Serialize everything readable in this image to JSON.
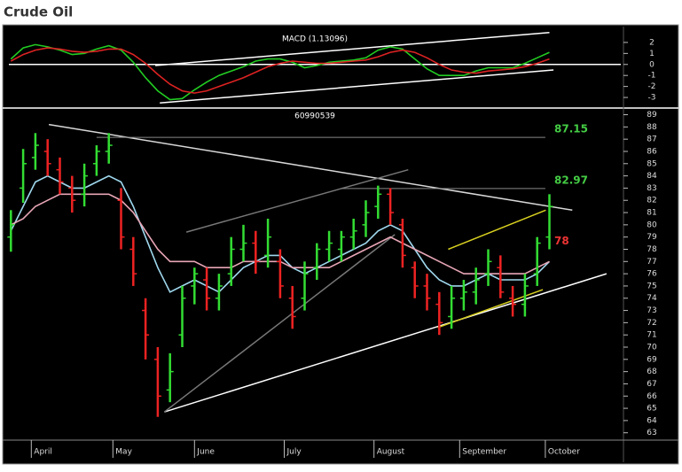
{
  "header": {
    "title": "Crude Oil"
  },
  "chart_data": [
    {
      "type": "line",
      "title": "MACD (1.13096)",
      "x": [
        0,
        3,
        6,
        9,
        12,
        15,
        18,
        21,
        24,
        27,
        30,
        33,
        36,
        39,
        42,
        45,
        48,
        51,
        54,
        57,
        60,
        63,
        66,
        69,
        72,
        75,
        78,
        81,
        84,
        87,
        90,
        93,
        96,
        99,
        102,
        105,
        108,
        111,
        114,
        117,
        120,
        123,
        126,
        129,
        132
      ],
      "series": [
        {
          "color": "#22cc22",
          "values": [
            0.5,
            1.5,
            1.8,
            1.6,
            1.3,
            0.9,
            1.0,
            1.4,
            1.7,
            1.3,
            0.2,
            -1.2,
            -2.4,
            -3.2,
            -3.1,
            -2.3,
            -1.6,
            -1.0,
            -0.6,
            -0.2,
            0.3,
            0.5,
            0.5,
            0.2,
            -0.3,
            -0.1,
            0.2,
            0.3,
            0.4,
            0.6,
            1.3,
            1.6,
            1.4,
            0.5,
            -0.4,
            -1.0,
            -1.0,
            -1.0,
            -0.6,
            -0.3,
            -0.3,
            -0.3,
            0.1,
            0.6,
            1.1
          ]
        },
        {
          "color": "#dd2222",
          "values": [
            0.3,
            0.9,
            1.3,
            1.5,
            1.4,
            1.2,
            1.1,
            1.2,
            1.4,
            1.4,
            0.9,
            0.1,
            -0.9,
            -1.8,
            -2.4,
            -2.6,
            -2.4,
            -2.0,
            -1.6,
            -1.2,
            -0.7,
            -0.2,
            0.1,
            0.3,
            0.2,
            0.1,
            0.1,
            0.2,
            0.3,
            0.4,
            0.7,
            1.1,
            1.3,
            1.1,
            0.6,
            0.0,
            -0.5,
            -0.7,
            -0.8,
            -0.6,
            -0.5,
            -0.4,
            -0.2,
            0.1,
            0.5
          ]
        }
      ],
      "xlim": [
        -0.5,
        149.5
      ],
      "ylim": [
        -3.8,
        3.2
      ],
      "yticks": [
        2,
        1,
        0,
        -1,
        -2,
        -3
      ],
      "zero_line": true,
      "trendlines": [
        {
          "x": [
            35.4,
            132
          ],
          "y": [
            -0.1,
            2.9
          ],
          "color": "#ffffff"
        },
        {
          "x": [
            36.5,
            133
          ],
          "y": [
            -3.5,
            -0.5
          ],
          "color": "#ffffff"
        }
      ]
    },
    {
      "type": "ohlc",
      "title": "60990539",
      "x": [
        0,
        3,
        6,
        9,
        12,
        15,
        18,
        21,
        24,
        27,
        30,
        33,
        36,
        39,
        42,
        45,
        48,
        51,
        54,
        57,
        60,
        63,
        66,
        69,
        72,
        75,
        78,
        81,
        84,
        87,
        90,
        93,
        96,
        99,
        102,
        105,
        108,
        111,
        114,
        117,
        120,
        123,
        126,
        129,
        132
      ],
      "open": [
        79,
        83,
        85.5,
        86,
        84.5,
        83,
        82.5,
        85,
        86,
        82,
        78,
        73,
        69,
        66.5,
        71,
        75,
        75.5,
        74,
        76,
        78,
        78.5,
        77.5,
        77,
        74,
        74,
        76.5,
        78,
        78,
        79,
        80,
        81.5,
        82.5,
        80,
        76.5,
        75,
        73.5,
        72.5,
        74,
        74.5,
        76,
        76.5,
        74,
        73.5,
        76,
        79
      ],
      "high": [
        81.2,
        86.2,
        87.5,
        87,
        85.5,
        84,
        85,
        86.5,
        87.5,
        83,
        79,
        74,
        70,
        69.5,
        75,
        76.5,
        76.5,
        76,
        79,
        80,
        79.5,
        80.5,
        78,
        75,
        77,
        78.5,
        79.5,
        79.5,
        80.5,
        82,
        83.2,
        83,
        80.5,
        77,
        76,
        74.5,
        75,
        75.5,
        76.5,
        78,
        77.5,
        75,
        76,
        79,
        82.5
      ],
      "low": [
        77.8,
        81.8,
        84.5,
        84,
        82.5,
        81,
        81.5,
        84,
        85,
        78,
        75,
        69,
        64.3,
        65.5,
        70,
        73.5,
        73,
        73,
        75,
        77,
        76,
        76.5,
        74,
        71.5,
        73,
        75.5,
        77,
        77,
        78,
        79,
        80.5,
        80,
        76.5,
        74,
        73,
        71,
        71.5,
        73,
        73.5,
        75,
        74,
        72.5,
        72.5,
        75,
        78
      ],
      "close": [
        80,
        85,
        86.5,
        85,
        83.5,
        82,
        84,
        86,
        86.5,
        79,
        76,
        71,
        66,
        68,
        74,
        76,
        74,
        75,
        78,
        78.5,
        77,
        79,
        75,
        72.5,
        76,
        78,
        78.5,
        79,
        79.5,
        81,
        82.5,
        81,
        77.5,
        75,
        74,
        72,
        74,
        74.5,
        75.5,
        77,
        74.5,
        73.5,
        75,
        78.5,
        81.5
      ],
      "up_color": "#33dd33",
      "down_color": "#ee2222",
      "series": [
        {
          "color": "#9fd8ee",
          "values": [
            79.5,
            81.5,
            83.5,
            84,
            83.5,
            83,
            83,
            83.5,
            84,
            83.5,
            81.5,
            79,
            76.5,
            74.5,
            75,
            75.5,
            75,
            74.5,
            75.5,
            76.5,
            77,
            77.5,
            77.5,
            76.5,
            76,
            76.5,
            77,
            77.5,
            78,
            78.5,
            79.5,
            80,
            79.5,
            78,
            76.5,
            75.5,
            75,
            75,
            75.5,
            76,
            75.5,
            75.5,
            75.5,
            76,
            77
          ]
        },
        {
          "color": "#e8a6b6",
          "values": [
            80,
            80.5,
            81.5,
            82,
            82.5,
            82.5,
            82.5,
            82.5,
            82.5,
            82,
            81,
            79.5,
            78,
            77,
            77,
            77,
            76.5,
            76.5,
            76.5,
            77,
            77,
            77,
            77,
            76.5,
            76.5,
            76.5,
            76.5,
            77,
            77.5,
            78,
            78.5,
            79,
            78.5,
            78,
            77.5,
            77,
            76.5,
            76,
            76,
            76,
            76,
            76,
            76,
            76.5,
            77
          ]
        }
      ],
      "xlim": [
        -0.5,
        149.5
      ],
      "ylim": [
        62.4,
        89.4
      ],
      "yticks": [
        89,
        88,
        87,
        86,
        85,
        84,
        83,
        82,
        81,
        80,
        79,
        78,
        77,
        76,
        75,
        74,
        73,
        72,
        71,
        70,
        69,
        68,
        67,
        66,
        65,
        64,
        63
      ],
      "xticks": [
        {
          "value": 5,
          "label": "April"
        },
        {
          "value": 25,
          "label": "May"
        },
        {
          "value": 45,
          "label": "June"
        },
        {
          "value": 67,
          "label": "July"
        },
        {
          "value": 89,
          "label": "August"
        },
        {
          "value": 110,
          "label": "September"
        },
        {
          "value": 131,
          "label": "October"
        }
      ],
      "levels": [
        {
          "text": "87.15",
          "value": 87.15,
          "x": [
            21,
            131
          ],
          "color": "#44cc44"
        },
        {
          "text": "82.97",
          "value": 82.97,
          "x": [
            81,
            131
          ],
          "color": "#44cc44"
        },
        {
          "text": "78",
          "value": 78,
          "x": null,
          "color": "#ee3333"
        }
      ],
      "trendlines": [
        {
          "x": [
            9.3,
            137.6
          ],
          "y": [
            88.2,
            81.2
          ],
          "color": "#d8d8d8"
        },
        {
          "x": [
            37.6,
            146
          ],
          "y": [
            64.7,
            76.0
          ],
          "color": "#ffffff"
        },
        {
          "x": [
            43,
            97.4
          ],
          "y": [
            79.4,
            84.5
          ],
          "color": "#777777"
        },
        {
          "x": [
            37.6,
            94.1
          ],
          "y": [
            64.7,
            79.2
          ],
          "color": "#777777"
        },
        {
          "x": [
            107.2,
            131.1
          ],
          "y": [
            78,
            81.2
          ],
          "color": "#d8d020"
        },
        {
          "x": [
            104.6,
            130.4
          ],
          "y": [
            71.6,
            74.7
          ],
          "color": "#d8d020"
        }
      ]
    }
  ]
}
